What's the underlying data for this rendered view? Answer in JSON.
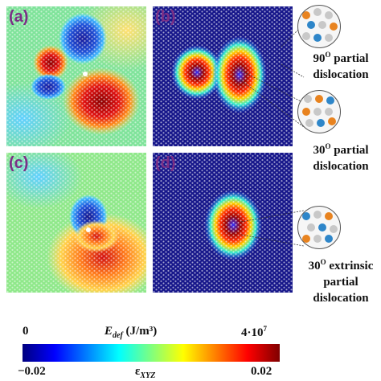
{
  "panels": [
    {
      "label": "(a)",
      "kind": "strain"
    },
    {
      "label": "(b)",
      "kind": "energy"
    },
    {
      "label": "(c)",
      "kind": "strain"
    },
    {
      "label": "(d)",
      "kind": "energy"
    }
  ],
  "annotations": {
    "b_top_line1": "90",
    "b_top_sup": "O",
    "b_top_line1b": " partial",
    "b_top_line2": "dislocation",
    "b_bottom_line1": "30",
    "b_bottom_sup": "O",
    "b_bottom_line1b": " partial",
    "b_bottom_line2": "dislocation",
    "d_line1": "30",
    "d_sup": "O",
    "d_line1b": " extrinsic",
    "d_line2": "partial",
    "d_line3": "dislocation"
  },
  "colorbar": {
    "energy_min": "0",
    "energy_label": "E",
    "energy_sub": "def",
    "energy_unit": " (J/m³)",
    "energy_max": "4·10",
    "energy_max_sup": "7",
    "strain_min": "−0.02",
    "strain_label": "ε",
    "strain_sub": "XYZ",
    "strain_max": "0.02",
    "colors": [
      "#00007f",
      "#0000ff",
      "#007fff",
      "#00ffff",
      "#7fff7f",
      "#ffff00",
      "#ff7f00",
      "#ff0000",
      "#7f0000"
    ]
  },
  "atom_colors": {
    "gray": "#c8c8c8",
    "orange": "#e8831f",
    "blue": "#2e86c9"
  }
}
